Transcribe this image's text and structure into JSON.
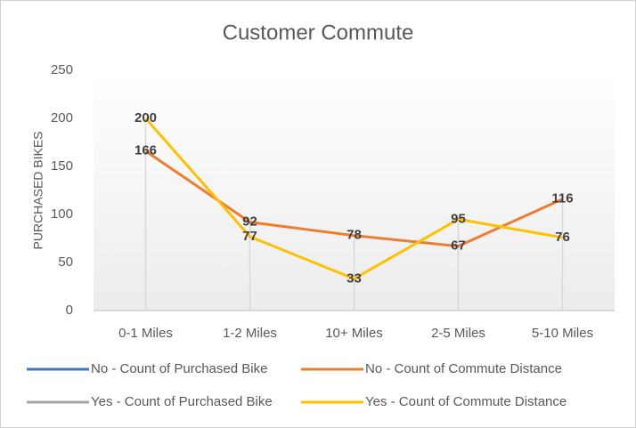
{
  "chart_data": {
    "type": "line",
    "title": "Customer Commute",
    "y_label": "PURCHASED BIKES",
    "categories": [
      "0-1 Miles",
      "1-2 Miles",
      "10+ Miles",
      "2-5 Miles",
      "5-10 Miles"
    ],
    "series": [
      {
        "name": "No - Count of Purchased Bike",
        "color": "#4472c4",
        "values": [
          null,
          null,
          null,
          null,
          null
        ]
      },
      {
        "name": "No - Count of Commute Distance",
        "color": "#ed7d31",
        "values": [
          166,
          92,
          78,
          67,
          116
        ]
      },
      {
        "name": "Yes - Count of Purchased Bike",
        "color": "#a5a5a5",
        "values": [
          null,
          null,
          null,
          null,
          null
        ]
      },
      {
        "name": "Yes - Count of Commute Distance",
        "color": "#ffc000",
        "values": [
          200,
          77,
          33,
          95,
          76
        ]
      }
    ],
    "ylim": [
      0,
      250
    ],
    "yticks": [
      0,
      50,
      100,
      150,
      200,
      250
    ],
    "grid": false,
    "legend": "bottom"
  }
}
